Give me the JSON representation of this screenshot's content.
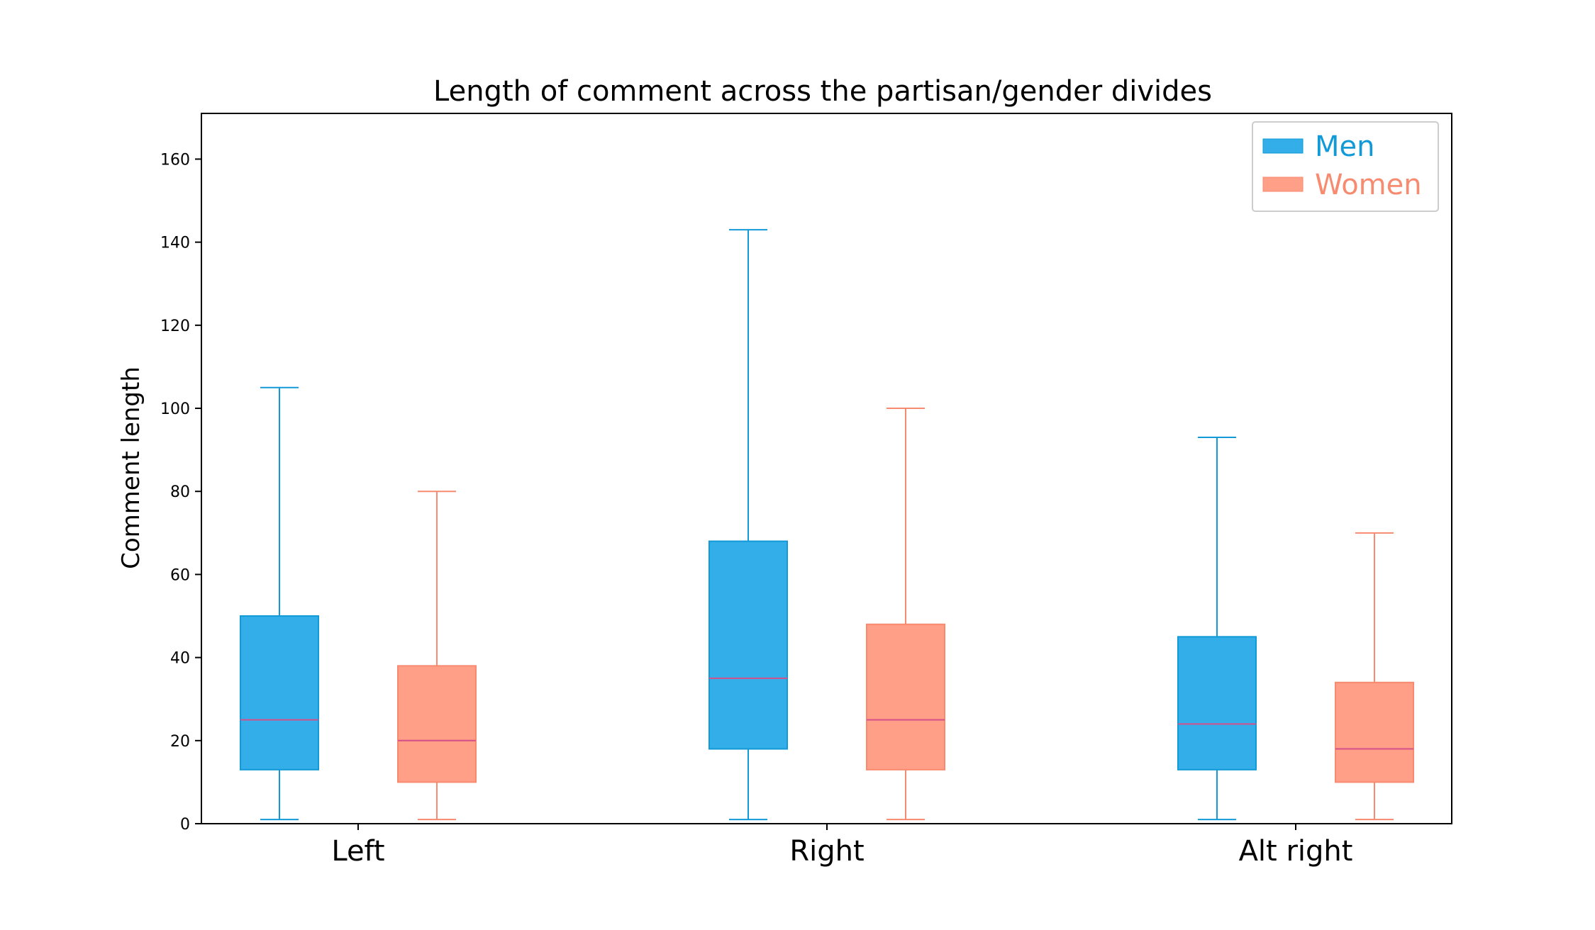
{
  "chart_data": {
    "type": "box",
    "title": "Length of comment across the partisan/gender divides",
    "xlabel": "",
    "ylabel": "Comment length",
    "ylim": [
      0,
      171
    ],
    "yticks": [
      0,
      20,
      40,
      60,
      80,
      100,
      120,
      140,
      160
    ],
    "categories": [
      "Left",
      "Right",
      "Alt right"
    ],
    "grid": false,
    "legend_position": "top-right",
    "series": [
      {
        "name": "Men",
        "fill": "#33aee8",
        "edge": "#129ad8",
        "median_color": "#d64f8a",
        "boxes": [
          {
            "whislo": 1,
            "q1": 13,
            "med": 25,
            "q3": 50,
            "whishi": 105
          },
          {
            "whislo": 1,
            "q1": 18,
            "med": 35,
            "q3": 68,
            "whishi": 143
          },
          {
            "whislo": 1,
            "q1": 13,
            "med": 24,
            "q3": 45,
            "whishi": 93
          }
        ]
      },
      {
        "name": "Women",
        "fill": "#ff9f87",
        "edge": "#f88a70",
        "median_color": "#d64f8a",
        "boxes": [
          {
            "whislo": 1,
            "q1": 10,
            "med": 20,
            "q3": 38,
            "whishi": 80
          },
          {
            "whislo": 1,
            "q1": 13,
            "med": 25,
            "q3": 48,
            "whishi": 100
          },
          {
            "whislo": 1,
            "q1": 10,
            "med": 18,
            "q3": 34,
            "whishi": 70
          }
        ]
      }
    ]
  }
}
